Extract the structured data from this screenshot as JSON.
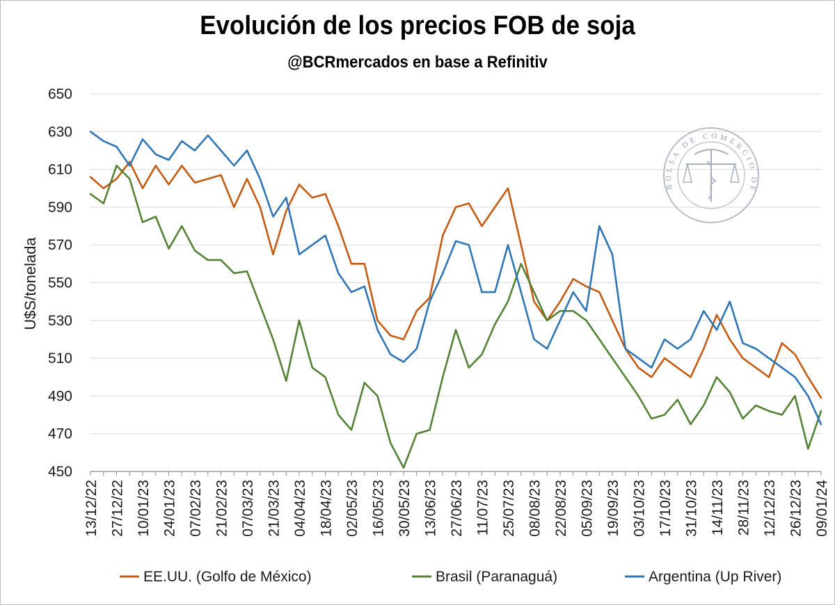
{
  "chart_data": {
    "type": "line",
    "title": "Evolución de los precios FOB de soja",
    "subtitle": "@BCRmercados en base a Refinitiv",
    "ylabel": "U$S/tonelada",
    "xlabel": "",
    "ylim": [
      450,
      650
    ],
    "yticks": [
      450,
      470,
      490,
      510,
      530,
      550,
      570,
      590,
      610,
      630,
      650
    ],
    "xlim": [
      "2022-12-13",
      "2024-01-09"
    ],
    "xticks": [
      "13/12/22",
      "27/12/22",
      "10/01/23",
      "24/01/23",
      "07/02/23",
      "21/02/23",
      "07/03/23",
      "21/03/23",
      "04/04/23",
      "18/04/23",
      "02/05/23",
      "16/05/23",
      "30/05/23",
      "13/06/23",
      "27/06/23",
      "11/07/23",
      "25/07/23",
      "08/08/23",
      "22/08/23",
      "05/09/23",
      "19/09/23",
      "03/10/23",
      "17/10/23",
      "31/10/23",
      "14/11/23",
      "28/11/23",
      "12/12/23",
      "26/12/23",
      "09/01/24"
    ],
    "grid": true,
    "legend_position": "bottom",
    "series": [
      {
        "name": "EE.UU. (Golfo de México)",
        "color": "#C55A11",
        "x": [
          "2022-12-13",
          "2022-12-20",
          "2022-12-27",
          "2023-01-03",
          "2023-01-10",
          "2023-01-17",
          "2023-01-24",
          "2023-01-31",
          "2023-02-07",
          "2023-02-14",
          "2023-02-21",
          "2023-02-28",
          "2023-03-07",
          "2023-03-14",
          "2023-03-21",
          "2023-03-28",
          "2023-04-04",
          "2023-04-11",
          "2023-04-18",
          "2023-04-25",
          "2023-05-02",
          "2023-05-09",
          "2023-05-16",
          "2023-05-23",
          "2023-05-30",
          "2023-06-06",
          "2023-06-13",
          "2023-06-20",
          "2023-06-27",
          "2023-07-04",
          "2023-07-11",
          "2023-07-18",
          "2023-07-25",
          "2023-08-01",
          "2023-08-08",
          "2023-08-15",
          "2023-08-22",
          "2023-08-29",
          "2023-09-05",
          "2023-09-12",
          "2023-09-19",
          "2023-09-26",
          "2023-10-03",
          "2023-10-10",
          "2023-10-17",
          "2023-10-24",
          "2023-10-31",
          "2023-11-07",
          "2023-11-14",
          "2023-11-21",
          "2023-11-28",
          "2023-12-05",
          "2023-12-12",
          "2023-12-19",
          "2023-12-26",
          "2024-01-02",
          "2024-01-09"
        ],
        "values": [
          606,
          600,
          605,
          614,
          600,
          612,
          602,
          612,
          603,
          605,
          607,
          590,
          605,
          590,
          565,
          588,
          602,
          595,
          597,
          580,
          560,
          560,
          530,
          522,
          520,
          535,
          542,
          575,
          590,
          592,
          580,
          590,
          600,
          570,
          540,
          530,
          540,
          552,
          548,
          545,
          530,
          515,
          505,
          500,
          510,
          505,
          500,
          515,
          533,
          520,
          510,
          505,
          500,
          518,
          512,
          500,
          489
        ]
      },
      {
        "name": "Brasil (Paranaguá)",
        "color": "#548235",
        "x": [
          "2022-12-13",
          "2022-12-20",
          "2022-12-27",
          "2023-01-03",
          "2023-01-10",
          "2023-01-17",
          "2023-01-24",
          "2023-01-31",
          "2023-02-07",
          "2023-02-14",
          "2023-02-21",
          "2023-02-28",
          "2023-03-07",
          "2023-03-14",
          "2023-03-21",
          "2023-03-28",
          "2023-04-04",
          "2023-04-11",
          "2023-04-18",
          "2023-04-25",
          "2023-05-02",
          "2023-05-09",
          "2023-05-16",
          "2023-05-23",
          "2023-05-30",
          "2023-06-06",
          "2023-06-13",
          "2023-06-20",
          "2023-06-27",
          "2023-07-04",
          "2023-07-11",
          "2023-07-18",
          "2023-07-25",
          "2023-08-01",
          "2023-08-08",
          "2023-08-15",
          "2023-08-22",
          "2023-08-29",
          "2023-09-05",
          "2023-09-12",
          "2023-09-19",
          "2023-09-26",
          "2023-10-03",
          "2023-10-10",
          "2023-10-17",
          "2023-10-24",
          "2023-10-31",
          "2023-11-07",
          "2023-11-14",
          "2023-11-21",
          "2023-11-28",
          "2023-12-05",
          "2023-12-12",
          "2023-12-19",
          "2023-12-26",
          "2024-01-02",
          "2024-01-09"
        ],
        "values": [
          597,
          592,
          612,
          605,
          582,
          585,
          568,
          580,
          567,
          562,
          562,
          555,
          556,
          538,
          520,
          498,
          530,
          505,
          500,
          480,
          472,
          497,
          490,
          465,
          452,
          470,
          472,
          500,
          525,
          505,
          512,
          528,
          540,
          560,
          545,
          530,
          535,
          535,
          530,
          520,
          510,
          500,
          490,
          478,
          480,
          488,
          475,
          485,
          500,
          492,
          478,
          485,
          482,
          480,
          490,
          462,
          482
        ]
      },
      {
        "name": "Argentina (Up River)",
        "color": "#2E75B6",
        "x": [
          "2022-12-13",
          "2022-12-20",
          "2022-12-27",
          "2023-01-03",
          "2023-01-10",
          "2023-01-17",
          "2023-01-24",
          "2023-01-31",
          "2023-02-07",
          "2023-02-14",
          "2023-02-21",
          "2023-02-28",
          "2023-03-07",
          "2023-03-14",
          "2023-03-21",
          "2023-03-28",
          "2023-04-04",
          "2023-04-11",
          "2023-04-18",
          "2023-04-25",
          "2023-05-02",
          "2023-05-09",
          "2023-05-16",
          "2023-05-23",
          "2023-05-30",
          "2023-06-06",
          "2023-06-13",
          "2023-06-20",
          "2023-06-27",
          "2023-07-04",
          "2023-07-11",
          "2023-07-18",
          "2023-07-25",
          "2023-08-01",
          "2023-08-08",
          "2023-08-15",
          "2023-08-22",
          "2023-08-29",
          "2023-09-05",
          "2023-09-12",
          "2023-09-19",
          "2023-09-26",
          "2023-10-03",
          "2023-10-10",
          "2023-10-17",
          "2023-10-24",
          "2023-10-31",
          "2023-11-07",
          "2023-11-14",
          "2023-11-21",
          "2023-11-28",
          "2023-12-05",
          "2023-12-12",
          "2023-12-19",
          "2023-12-26",
          "2024-01-02",
          "2024-01-09"
        ],
        "values": [
          630,
          625,
          622,
          612,
          626,
          618,
          615,
          625,
          620,
          628,
          620,
          612,
          620,
          605,
          585,
          595,
          565,
          570,
          575,
          555,
          545,
          548,
          525,
          512,
          508,
          515,
          540,
          555,
          572,
          570,
          545,
          545,
          570,
          545,
          520,
          515,
          530,
          545,
          535,
          580,
          565,
          515,
          510,
          505,
          520,
          515,
          520,
          535,
          525,
          540,
          518,
          515,
          510,
          505,
          500,
          490,
          475
        ]
      }
    ]
  },
  "seal": {
    "text": "BOLSA DE COMERCIO DE ROSARIO"
  }
}
